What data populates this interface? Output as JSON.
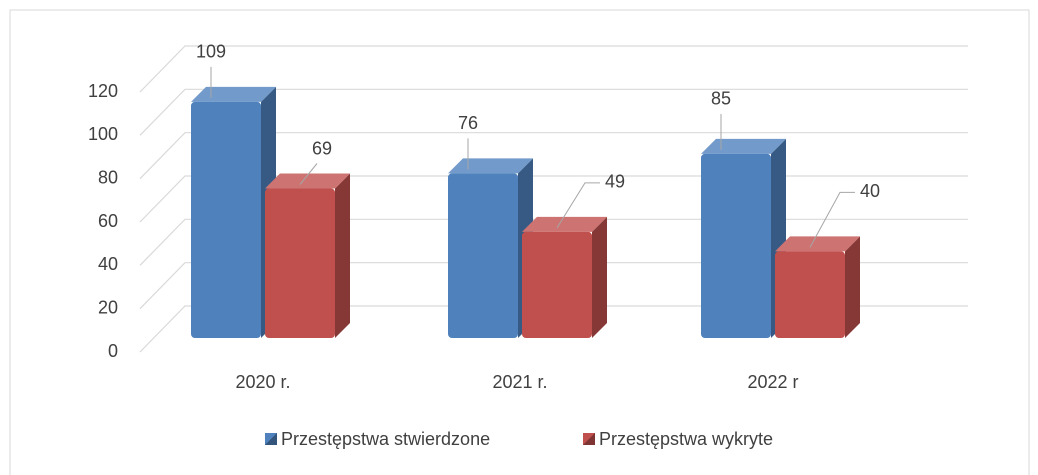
{
  "chart_data": {
    "type": "bar3d",
    "categories": [
      "2020 r.",
      "2021 r.",
      "2022 r"
    ],
    "series": [
      {
        "name": "Przestępstwa stwierdzone",
        "color": "#4f81bd",
        "values": [
          109,
          76,
          85
        ]
      },
      {
        "name": "Przestępstwa wykryte",
        "color": "#c0504d",
        "values": [
          69,
          49,
          40
        ]
      }
    ],
    "ylim": [
      0,
      120
    ],
    "yticks": [
      0,
      20,
      40,
      60,
      80,
      100,
      120
    ],
    "grid": true,
    "legend": "bottom"
  }
}
